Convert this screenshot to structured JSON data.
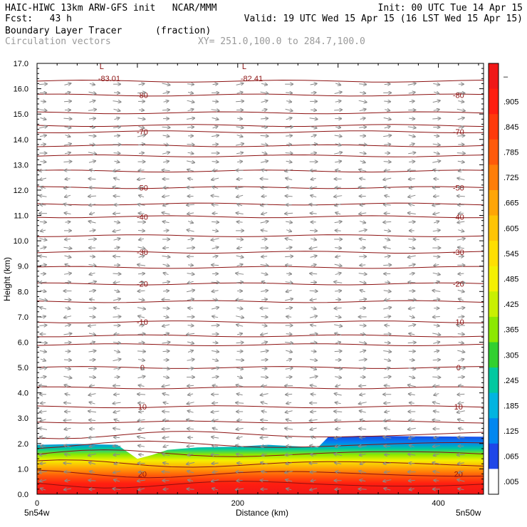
{
  "header": {
    "left_line1": "HAIC-HIWC 13km ARW-GFS init   NCAR/MMM",
    "left_line2": "Fcst:   43 h",
    "left_line3": "Boundary Layer Tracer",
    "left_line3b": "(fraction)",
    "left_line4": "Circulation vectors",
    "left_line4b": "XY= 251.0,100.0 to 284.7,100.0",
    "right_line1": "Init: 00 UTC Tue 14 Apr 15",
    "right_line2": "Valid: 19 UTC Wed 15 Apr 15 (16 LST Wed 15 Apr 15)"
  },
  "chart_data": {
    "type": "heatmap",
    "ylabel": "Height (km)",
    "xlabel": "Distance (km)",
    "ylim": [
      0,
      17
    ],
    "xlim": [
      0,
      445
    ],
    "y_ticks": [
      "0.0",
      "1.0",
      "2.0",
      "3.0",
      "4.0",
      "5.0",
      "6.0",
      "7.0",
      "8.0",
      "9.0",
      "10.0",
      "11.0",
      "12.0",
      "13.0",
      "14.0",
      "15.0",
      "16.0",
      "17.0"
    ],
    "x_ticks": [
      {
        "value": 0,
        "label": "0"
      },
      {
        "value": 200,
        "label": "200"
      },
      {
        "value": 400,
        "label": "400"
      }
    ],
    "x_end_labels": {
      "left": "5n54w",
      "right": "5n50w"
    },
    "colorbar": {
      "labels": [
        "–",
        ".905",
        ".845",
        ".785",
        ".725",
        ".665",
        ".605",
        ".545",
        ".485",
        ".425",
        ".365",
        ".305",
        ".245",
        ".185",
        ".125",
        ".065",
        ".005"
      ],
      "colors": [
        "#f01818",
        "#ff1e10",
        "#ff3a0c",
        "#ff5a0a",
        "#ff7e08",
        "#ffa506",
        "#ffc404",
        "#ffdf00",
        "#f4f000",
        "#c8f000",
        "#8ce800",
        "#32d030",
        "#00c8a0",
        "#00b4e0",
        "#0087f0",
        "#1e46e8",
        "#ffffff"
      ]
    },
    "temperature_contours": [
      {
        "label": "-80",
        "y": 15.75
      },
      {
        "label": "-70",
        "y": 14.3
      },
      {
        "label": "-50",
        "y": 12.1
      },
      {
        "label": "-40",
        "y": 10.95
      },
      {
        "label": "-30",
        "y": 9.55
      },
      {
        "label": "-20",
        "y": 8.3
      },
      {
        "label": "-10",
        "y": 6.8
      },
      {
        "label": "0",
        "y": 5.0
      },
      {
        "label": "10",
        "y": 3.45
      },
      {
        "label": "20",
        "y": 0.8
      }
    ],
    "contour_lines_y": [
      16.3,
      15.75,
      15.05,
      14.55,
      14.3,
      13.75,
      13.35,
      12.75,
      12.1,
      11.45,
      10.95,
      10.2,
      9.55,
      8.95,
      8.3,
      7.6,
      6.8,
      6.25,
      5.9,
      5.0,
      4.2,
      3.45,
      2.85,
      2.35,
      1.95,
      1.6,
      1.2,
      0.8,
      0.4
    ],
    "minima": [
      {
        "x": 68,
        "y": 16.45,
        "label": "-83.01"
      },
      {
        "x": 210,
        "y": 16.45,
        "label": "-82.41"
      }
    ],
    "tracer_top_km": [
      {
        "x": 0,
        "y": 1.95
      },
      {
        "x": 40,
        "y": 1.98
      },
      {
        "x": 80,
        "y": 1.95
      },
      {
        "x": 100,
        "y": 1.4
      },
      {
        "x": 115,
        "y": 1.55
      },
      {
        "x": 130,
        "y": 1.75
      },
      {
        "x": 160,
        "y": 1.85
      },
      {
        "x": 200,
        "y": 1.88
      },
      {
        "x": 230,
        "y": 1.95
      },
      {
        "x": 280,
        "y": 1.85
      },
      {
        "x": 290,
        "y": 2.25
      },
      {
        "x": 320,
        "y": 2.3
      },
      {
        "x": 400,
        "y": 2.28
      },
      {
        "x": 445,
        "y": 2.27
      }
    ]
  }
}
